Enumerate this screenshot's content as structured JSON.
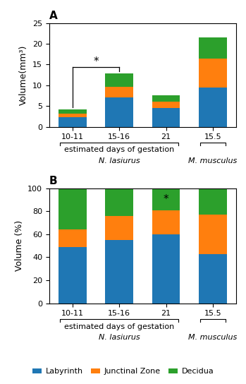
{
  "chart_data": [
    {
      "type": "bar",
      "stacked": true,
      "title": "A",
      "categories": [
        "10-11",
        "15-16",
        "21",
        "15.5"
      ],
      "series": [
        {
          "name": "Labyrinth",
          "values": [
            2.3,
            7.0,
            4.5,
            9.5
          ]
        },
        {
          "name": "Junctinal Zone",
          "values": [
            0.85,
            2.7,
            1.5,
            7.0
          ]
        },
        {
          "name": "Decidua",
          "values": [
            1.1,
            3.2,
            1.5,
            5.0
          ]
        }
      ],
      "y_label": "Volume(mm³)",
      "ylim": [
        0,
        25
      ],
      "yticks": [
        0,
        5,
        10,
        15,
        20,
        25
      ],
      "annotations": [
        {
          "text": "*",
          "x": [
            "10-11",
            "15-16"
          ],
          "kind": "bracket"
        },
        {
          "text": "estimated days of gestation",
          "x": [
            "10-11",
            "15-16",
            "21"
          ],
          "kind": "group"
        },
        {
          "text": "N. lasiurus",
          "x": [
            "10-11",
            "15-16",
            "21"
          ],
          "kind": "species"
        },
        {
          "text": "M. musculus",
          "x": [
            "15.5"
          ],
          "kind": "species"
        }
      ]
    },
    {
      "type": "bar",
      "stacked": true,
      "title": "B",
      "categories": [
        "10-11",
        "15-16",
        "21",
        "15.5"
      ],
      "series": [
        {
          "name": "Labyrinth",
          "values": [
            49,
            55,
            60,
            43
          ]
        },
        {
          "name": "Junctinal Zone",
          "values": [
            15,
            21,
            21,
            34
          ]
        },
        {
          "name": "Decidua",
          "values": [
            36,
            24,
            19,
            23
          ]
        }
      ],
      "y_label": "Volume (%)",
      "ylim": [
        0,
        100
      ],
      "yticks": [
        0,
        20,
        40,
        60,
        80,
        100
      ],
      "legend": "lower center",
      "annotations": [
        {
          "text": "*",
          "x": [
            "21"
          ],
          "kind": "mark"
        },
        {
          "text": "estimated days of gestation",
          "x": [
            "10-11",
            "15-16",
            "21"
          ],
          "kind": "group"
        },
        {
          "text": "N. lasiurus",
          "x": [
            "10-11",
            "15-16",
            "21"
          ],
          "kind": "species"
        },
        {
          "text": "M. musculus",
          "x": [
            "15.5"
          ],
          "kind": "species"
        }
      ]
    }
  ]
}
